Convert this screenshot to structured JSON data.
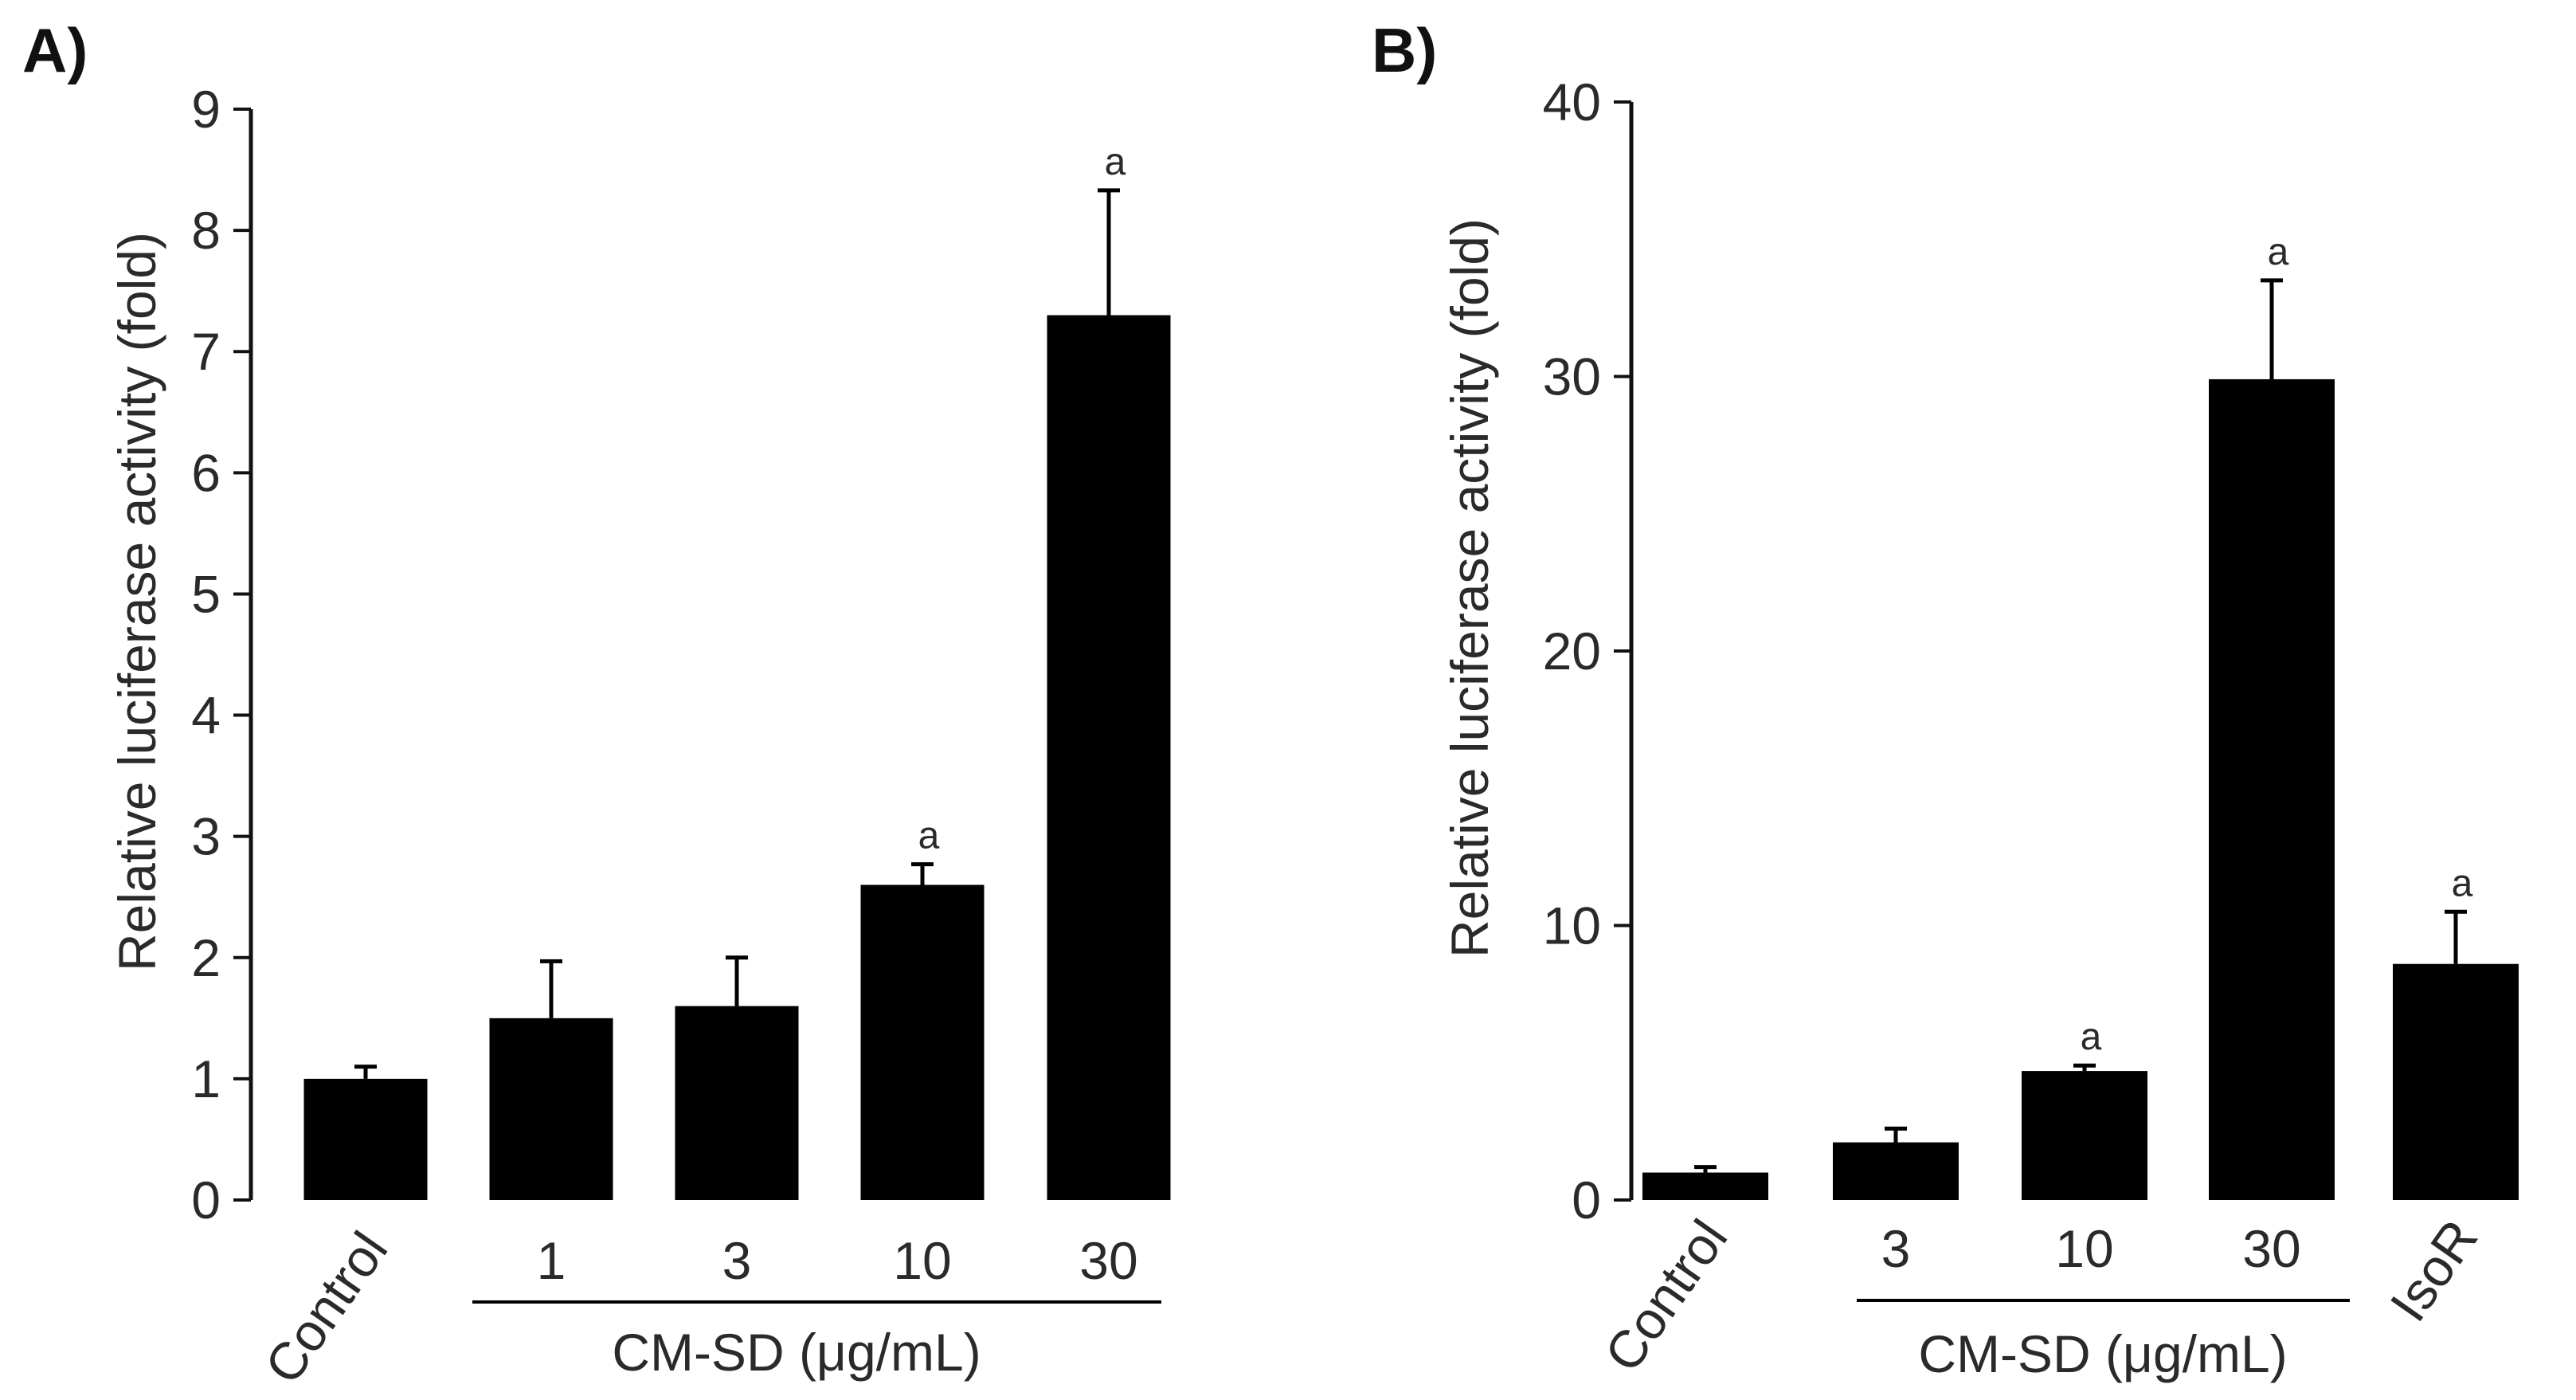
{
  "chart_data": [
    {
      "panel_label": "A)",
      "type": "bar",
      "ylabel": "Relative luciferase activity (fold)",
      "ylim": [
        0,
        9
      ],
      "yticks": [
        "0",
        "1",
        "2",
        "3",
        "4",
        "5",
        "6",
        "7",
        "8",
        "9"
      ],
      "categories": [
        "Control",
        "1",
        "3",
        "10",
        "30"
      ],
      "values": [
        1.0,
        1.5,
        1.6,
        2.6,
        7.3
      ],
      "errors": [
        0.1,
        0.47,
        0.4,
        0.17,
        1.03
      ],
      "significance": [
        "",
        "",
        "",
        "a",
        "a"
      ],
      "group": {
        "label": "CM-SD (μg/mL)",
        "from": 1,
        "to": 4
      }
    },
    {
      "panel_label": "B)",
      "type": "bar",
      "ylabel": "Relative luciferase activity (fold)",
      "ylim": [
        0,
        40
      ],
      "yticks": [
        "0",
        "10",
        "20",
        "30",
        "40"
      ],
      "categories": [
        "Control",
        "3",
        "10",
        "30",
        "IsoR"
      ],
      "values": [
        1.0,
        2.1,
        4.7,
        29.9,
        8.6
      ],
      "errors": [
        0.2,
        0.5,
        0.2,
        3.6,
        1.9
      ],
      "significance": [
        "",
        "",
        "a",
        "a",
        "a"
      ],
      "group": {
        "label": "CM-SD (μg/mL)",
        "from": 1,
        "to": 3
      }
    }
  ]
}
